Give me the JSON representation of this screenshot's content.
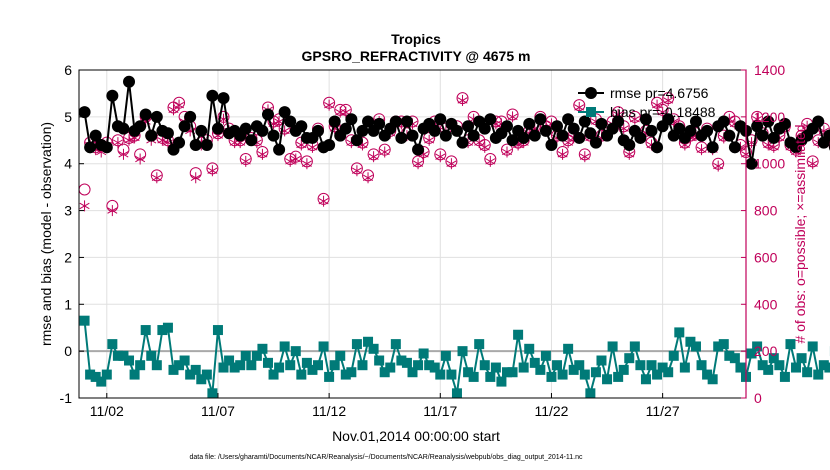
{
  "chart_data": {
    "type": "line",
    "title": "Tropics",
    "subtitle": "GPSRO_REFRACTIVITY @ 4675 m",
    "xlabel": "Nov.01,2014 00:00:00 start",
    "ylabel": "rmse and bias (model - observation)",
    "y2label": "# of obs: o=possible; ×=assimilated",
    "footnote": "data file: /Users/gharamti/Documents/NCAR/Reanalysis/~/Documents/NCAR/Reanalysis/webpub/obs_diag_output_2014-11.nc",
    "xlim": [
      0.75,
      30.75
    ],
    "ylim": [
      -1,
      6
    ],
    "y2lim": [
      0,
      1400
    ],
    "xticks": [
      2,
      7,
      12,
      17,
      22,
      27
    ],
    "xticklabels": [
      "11/02",
      "11/07",
      "11/12",
      "11/17",
      "11/22",
      "11/27"
    ],
    "yticks": [
      -1,
      0,
      1,
      2,
      3,
      4,
      5,
      6
    ],
    "yticklabels": [
      "-1",
      "0",
      "1",
      "2",
      "3",
      "4",
      "5",
      "6"
    ],
    "y2ticks": [
      0,
      200,
      400,
      600,
      800,
      1000,
      1200,
      1400
    ],
    "y2ticklabels": [
      "0",
      "200",
      "400",
      "600",
      "800",
      "1000",
      "1200",
      "1400"
    ],
    "legend_position": "top-right",
    "grid": true,
    "colors": {
      "rmse": "#000000",
      "bias": "#007a78",
      "obs": "#c0005a",
      "zero": "#a9a9a9"
    },
    "series": [
      {
        "name": "rmse",
        "legend": "rmse pr=4.6756",
        "axis": "left",
        "values": [
          5.1,
          4.35,
          4.6,
          4.4,
          4.35,
          5.45,
          4.8,
          4.75,
          5.75,
          4.7,
          4.8,
          5.05,
          4.6,
          5.0,
          4.7,
          4.65,
          4.3,
          4.45,
          4.8,
          5.0,
          4.4,
          4.7,
          4.4,
          5.45,
          4.75,
          5.4,
          4.65,
          4.7,
          4.6,
          4.75,
          4.5,
          4.8,
          4.7,
          5.05,
          4.6,
          4.3,
          5.1,
          4.9,
          4.7,
          4.8,
          4.55,
          4.55,
          4.7,
          4.35,
          4.4,
          4.9,
          4.6,
          4.75,
          4.95,
          4.5,
          4.7,
          4.9,
          4.7,
          4.85,
          4.6,
          4.75,
          4.9,
          4.55,
          4.9,
          4.6,
          4.3,
          4.75,
          4.85,
          4.7,
          4.95,
          4.6,
          4.85,
          4.7,
          4.45,
          4.8,
          4.6,
          4.9,
          4.75,
          4.95,
          4.55,
          4.65,
          4.8,
          4.5,
          4.7,
          4.55,
          4.85,
          4.6,
          4.95,
          4.7,
          4.4,
          4.8,
          4.6,
          4.95,
          4.75,
          4.55,
          4.9,
          4.65,
          4.45,
          4.85,
          4.6,
          4.75,
          4.9,
          4.5,
          4.4,
          4.7,
          4.55,
          4.95,
          4.7,
          4.35,
          4.8,
          4.95,
          4.6,
          4.75,
          4.55,
          4.7,
          4.9,
          4.6,
          4.7,
          4.35,
          4.8,
          4.9,
          4.6,
          4.35,
          4.8,
          4.7,
          4.0,
          4.8,
          4.6,
          4.9,
          4.55,
          4.75,
          4.85,
          4.45,
          4.35,
          4.5,
          4.6,
          4.75,
          4.9,
          4.45,
          4.6,
          4.35,
          4.8,
          4.55,
          4.95,
          4.65,
          4.3,
          4.5,
          4.75,
          4.7,
          4.85,
          4.6,
          4.75,
          4.5,
          4.3,
          4.65,
          4.6,
          4.3,
          4.75,
          4.85,
          4.4,
          4.55,
          4.9,
          4.6,
          4.75,
          4.3,
          4.55,
          4.85,
          4.65,
          4.7,
          4.9,
          4.55,
          4.8,
          4.5,
          4.65,
          4.8,
          4.9,
          4.55,
          4.15,
          4.5,
          4.75,
          4.6,
          4.5,
          4.45,
          4.7,
          4.4,
          4.55
        ]
      },
      {
        "name": "bias",
        "legend": "bias pr=-0.18488",
        "axis": "left",
        "values": [
          0.65,
          -0.5,
          -0.55,
          -0.65,
          -0.5,
          0.15,
          -0.1,
          -0.1,
          -0.2,
          -0.5,
          -0.3,
          0.45,
          -0.1,
          -0.3,
          0.45,
          0.5,
          -0.4,
          -0.3,
          -0.2,
          -0.5,
          -0.4,
          -0.6,
          -0.5,
          -0.9,
          0.45,
          -0.35,
          -0.2,
          -0.35,
          -0.3,
          -0.1,
          -0.3,
          -0.1,
          0.05,
          -0.25,
          -0.5,
          -0.35,
          0.1,
          -0.3,
          0.0,
          -0.5,
          -0.25,
          -0.4,
          -0.3,
          0.1,
          -0.55,
          -0.3,
          -0.1,
          -0.5,
          -0.45,
          0.15,
          -0.3,
          0.2,
          0.05,
          -0.2,
          -0.45,
          -0.35,
          0.15,
          -0.2,
          -0.25,
          -0.45,
          -0.3,
          -0.05,
          -0.3,
          -0.35,
          -0.5,
          -0.1,
          -0.5,
          -0.9,
          0.0,
          -0.45,
          -0.55,
          0.15,
          -0.3,
          -0.55,
          -0.35,
          -0.65,
          -0.45,
          -0.45,
          0.35,
          -0.35,
          0.05,
          -0.25,
          -0.4,
          -0.1,
          -0.55,
          -0.3,
          -0.5,
          0.05,
          -0.4,
          -0.3,
          -0.5,
          -0.9,
          -0.45,
          -0.2,
          -0.6,
          0.1,
          -0.55,
          -0.4,
          -0.15,
          0.1,
          -0.3,
          -0.6,
          -0.3,
          -0.5,
          -0.35,
          -0.45,
          -0.1,
          0.4,
          -0.35,
          0.2,
          0.1,
          -0.3,
          -0.5,
          -0.6,
          0.1,
          0.15,
          -0.1,
          -0.15,
          -0.35,
          -0.55,
          -0.05,
          0.1,
          -0.3,
          -0.4,
          -0.15,
          -0.3,
          -0.55,
          0.15,
          -0.35,
          -0.15,
          -0.45,
          0.1,
          -0.5,
          -0.3,
          -0.35,
          0.0,
          -0.45,
          -0.3,
          -0.55,
          -0.15,
          -0.4,
          0.1,
          -0.55,
          -0.9,
          -0.5,
          -0.3,
          -0.05,
          0.0,
          -0.15,
          -0.45,
          -0.6,
          -0.3,
          -0.4,
          0.05,
          -0.45,
          -0.3,
          -0.55,
          -0.2,
          -0.35,
          -0.5,
          0.15,
          -0.3,
          -0.2,
          -0.55,
          -0.4,
          -0.15,
          -0.6,
          -0.3,
          0.3,
          -0.1,
          0.1,
          -0.35,
          -0.55,
          -0.4,
          -0.25,
          -0.1,
          0.1,
          -0.35,
          0.25,
          -0.3,
          -0.45,
          -0.5,
          0.35,
          -0.9,
          -0.8,
          -0.8
        ]
      },
      {
        "name": "possible",
        "legend": "possible",
        "axis": "right",
        "marker": "circle",
        "values": [
          890,
          1090,
          1070,
          1080,
          1090,
          820,
          1100,
          1060,
          1110,
          1120,
          1040,
          1200,
          1120,
          950,
          1110,
          1100,
          1240,
          1260,
          1200,
          1160,
          960,
          1090,
          1100,
          980,
          1130,
          1200,
          1150,
          1100,
          1100,
          1020,
          1110,
          1100,
          1050,
          1240,
          1180,
          1190,
          1150,
          1020,
          1030,
          1090,
          1010,
          1080,
          1150,
          850,
          1260,
          1160,
          1230,
          1230,
          1100,
          980,
          1090,
          950,
          1040,
          1190,
          1060,
          1140,
          1180,
          1180,
          1130,
          1180,
          1010,
          1050,
          1110,
          1180,
          1040,
          1150,
          1010,
          1160,
          1280,
          1100,
          1200,
          1100,
          1080,
          1020,
          1180,
          1180,
          1060,
          1210,
          1090,
          1100,
          1140,
          1160,
          1200,
          1160,
          1180,
          1120,
          1050,
          1100,
          1120,
          1250,
          1040,
          1120,
          1190,
          1120,
          1130,
          1180,
          1220,
          1160,
          1050,
          1200,
          1120,
          1140,
          1090,
          1260,
          1230,
          1280,
          1190,
          1160,
          1090,
          1120,
          1130,
          1070,
          1150,
          1070,
          1000,
          1120,
          1200,
          1180,
          1080,
          1050,
          1100,
          1200,
          1130,
          1090,
          1080,
          1120,
          1160,
          1080,
          1060,
          1120,
          1170,
          1010,
          1100,
          1150,
          1100,
          1110,
          980,
          1170,
          1060,
          1080,
          1080,
          1050,
          1120,
          1080,
          1120,
          1090,
          1180,
          1000,
          1140,
          1160,
          1120,
          1090,
          1060,
          1120,
          1170,
          1150,
          1090,
          1130,
          1100,
          880,
          1200,
          1040,
          1080,
          1040,
          1120,
          1100,
          980,
          1080,
          1160,
          1060,
          1080,
          1040,
          1080,
          1140,
          1200,
          1060,
          1000,
          1080,
          1160,
          1020,
          1130,
          1100,
          1080,
          1120,
          1060,
          1040,
          1150,
          1100,
          0
        ]
      },
      {
        "name": "assimilated",
        "legend": "assimilated",
        "axis": "right",
        "marker": "asterisk",
        "values": [
          820,
          1080,
          1060,
          1050,
          1080,
          800,
          1090,
          1040,
          1100,
          1110,
          1020,
          1180,
          1100,
          940,
          1100,
          1090,
          1230,
          1250,
          1180,
          1140,
          940,
          1080,
          1090,
          970,
          1120,
          1190,
          1140,
          1090,
          1090,
          1010,
          1100,
          1090,
          1040,
          1230,
          1170,
          1180,
          1140,
          1010,
          1020,
          1080,
          1000,
          1070,
          1140,
          840,
          1250,
          1150,
          1220,
          1220,
          1090,
          970,
          1080,
          940,
          1030,
          1180,
          1050,
          1130,
          1170,
          1170,
          1120,
          1170,
          1000,
          1040,
          1100,
          1170,
          1030,
          1140,
          1000,
          1150,
          1270,
          1090,
          1190,
          1090,
          1070,
          1010,
          1170,
          1170,
          1050,
          1200,
          1080,
          1090,
          1130,
          1150,
          1190,
          1150,
          1170,
          1110,
          1040,
          1090,
          1110,
          1240,
          1030,
          1110,
          1180,
          1110,
          1120,
          1170,
          1210,
          1150,
          1040,
          1190,
          1110,
          1130,
          1080,
          1250,
          1220,
          1270,
          1180,
          1150,
          1080,
          1110,
          1120,
          1060,
          1140,
          1060,
          990,
          1110,
          1190,
          1170,
          1070,
          1040,
          1090,
          1190,
          1120,
          1080,
          1070,
          1110,
          1150,
          1070,
          1050,
          1110,
          1160,
          1000,
          1090,
          1140,
          1090,
          1100,
          970,
          1160,
          1050,
          1070,
          1070,
          1040,
          1110,
          1070,
          1110,
          1080,
          1170,
          990,
          1130,
          1150,
          1110,
          1080,
          1050,
          1110,
          1160,
          1140,
          1080,
          1120,
          1090,
          870,
          1190,
          1030,
          1070,
          1030,
          1110,
          1090,
          970,
          1070,
          1150,
          1050,
          1070,
          1030,
          1070,
          1130,
          1190,
          1050,
          990,
          1070,
          1150,
          1010,
          1120,
          1090,
          1070,
          1110,
          1050,
          1030,
          1140,
          1090,
          0
        ]
      }
    ]
  }
}
